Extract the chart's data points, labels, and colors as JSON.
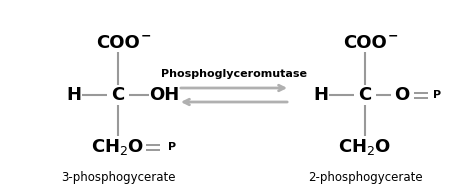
{
  "bg_color": "#ffffff",
  "arrow_color": "#b0b0b0",
  "text_color": "#000000",
  "bond_color": "#999999",
  "enzyme_label": "Phosphoglyceromutase",
  "left_label": "3-phosphogycerate",
  "right_label": "2-phosphogycerate",
  "figsize": [
    4.74,
    1.91
  ],
  "dpi": 100
}
